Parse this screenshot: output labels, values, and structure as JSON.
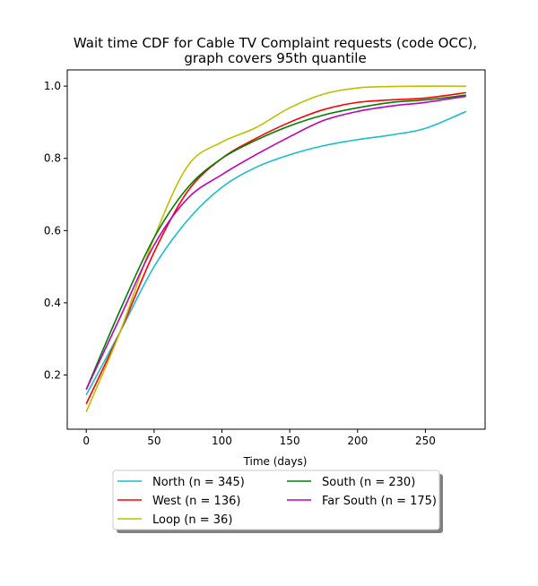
{
  "chart_data": {
    "type": "line",
    "title_line1": "Wait time CDF for Cable TV Complaint  requests (code OCC),",
    "title_line2": "graph covers 95th quantile",
    "xlabel": "Time (days)",
    "ylabel": "",
    "xlim": [
      -14,
      294
    ],
    "ylim": [
      0.05,
      1.045
    ],
    "xticks": [
      0,
      50,
      100,
      150,
      200,
      250
    ],
    "yticks": [
      0.2,
      0.4,
      0.6,
      0.8,
      1.0
    ],
    "xtick_labels": [
      "0",
      "50",
      "100",
      "150",
      "200",
      "250"
    ],
    "ytick_labels": [
      "0.2",
      "0.4",
      "0.6",
      "0.8",
      "1.0"
    ],
    "grid": false,
    "legend_placement": "below plot, two columns",
    "series": [
      {
        "name": "North (n = 345)",
        "color": "#17becf",
        "x": [
          0,
          25,
          50,
          75,
          100,
          125,
          150,
          175,
          200,
          225,
          250,
          280
        ],
        "y": [
          0.145,
          0.32,
          0.5,
          0.63,
          0.72,
          0.775,
          0.81,
          0.835,
          0.852,
          0.865,
          0.883,
          0.93
        ]
      },
      {
        "name": "West (n = 136)",
        "color": "#ff0000",
        "x": [
          0,
          25,
          50,
          75,
          100,
          125,
          150,
          175,
          200,
          225,
          250,
          280
        ],
        "y": [
          0.12,
          0.32,
          0.54,
          0.71,
          0.8,
          0.855,
          0.9,
          0.935,
          0.955,
          0.962,
          0.967,
          0.982
        ]
      },
      {
        "name": "Loop (n = 36)",
        "color": "#bfbf00",
        "x": [
          0,
          25,
          50,
          75,
          100,
          125,
          150,
          175,
          200,
          225,
          250,
          280
        ],
        "y": [
          0.098,
          0.32,
          0.58,
          0.78,
          0.845,
          0.885,
          0.94,
          0.978,
          0.995,
          0.999,
          1.0,
          1.0
        ]
      },
      {
        "name": "South (n = 230)",
        "color": "#008000",
        "x": [
          0,
          25,
          50,
          75,
          100,
          125,
          150,
          175,
          200,
          225,
          250,
          280
        ],
        "y": [
          0.16,
          0.38,
          0.58,
          0.72,
          0.8,
          0.85,
          0.89,
          0.92,
          0.94,
          0.955,
          0.962,
          0.975
        ]
      },
      {
        "name": "Far South (n = 175)",
        "color": "#bf00bf",
        "x": [
          0,
          25,
          50,
          75,
          100,
          125,
          150,
          175,
          200,
          225,
          250,
          280
        ],
        "y": [
          0.16,
          0.36,
          0.56,
          0.69,
          0.755,
          0.81,
          0.86,
          0.905,
          0.93,
          0.945,
          0.955,
          0.972
        ]
      }
    ]
  }
}
